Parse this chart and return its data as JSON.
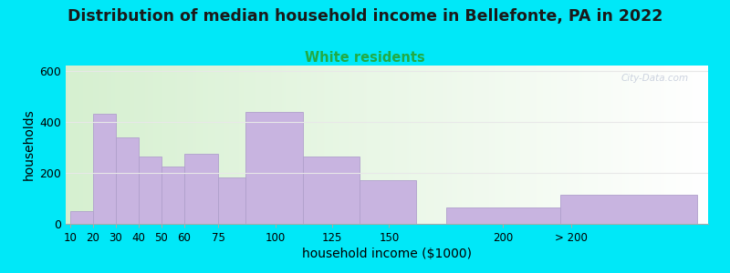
{
  "title": "Distribution of median household income in Bellefonte, PA in 2022",
  "subtitle": "White residents",
  "xlabel": "household income ($1000)",
  "ylabel": "households",
  "title_fontsize": 12.5,
  "subtitle_fontsize": 10.5,
  "subtitle_color": "#22aa44",
  "bar_color": "#c8b4e0",
  "bar_edge_color": "#b0a0cc",
  "background_outer": "#00e8f8",
  "ylim": [
    0,
    620
  ],
  "yticks": [
    0,
    200,
    400,
    600
  ],
  "categories": [
    "10",
    "20",
    "30",
    "40",
    "50",
    "60",
    "75",
    "100",
    "125",
    "150",
    "200",
    "> 200"
  ],
  "values": [
    50,
    430,
    340,
    265,
    225,
    275,
    180,
    440,
    265,
    170,
    65,
    115
  ],
  "bar_lefts": [
    10,
    20,
    30,
    40,
    50,
    60,
    75,
    87,
    112,
    137,
    175,
    225
  ],
  "bar_rights": [
    20,
    30,
    40,
    50,
    60,
    75,
    87,
    112,
    137,
    162,
    225,
    285
  ],
  "xtick_positions": [
    10,
    20,
    30,
    40,
    50,
    60,
    75,
    100,
    125,
    150,
    200,
    230
  ],
  "watermark": "City-Data.com",
  "bg_left_color": "#d6f0d0",
  "bg_right_color": "#ffffff",
  "grid_color": "#e8e8e8"
}
